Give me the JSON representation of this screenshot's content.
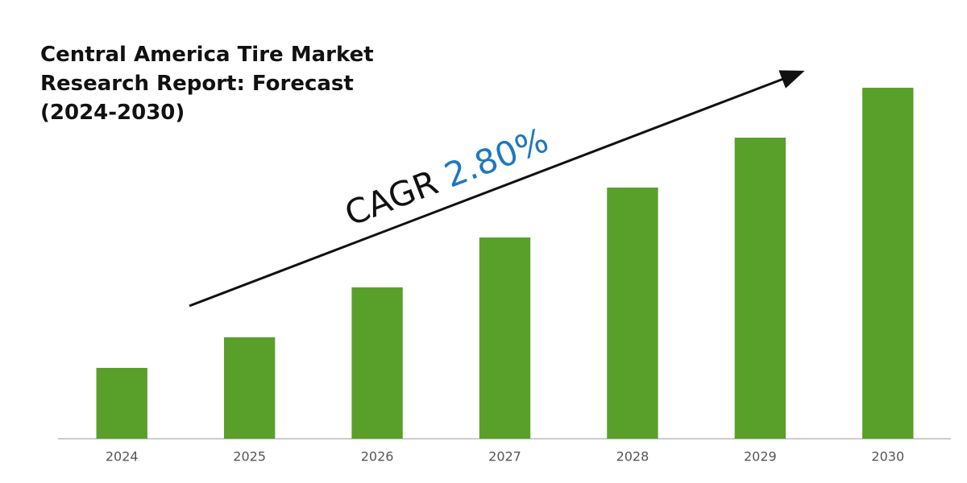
{
  "chart_data": {
    "type": "bar",
    "title": "Central America Tire Market Research Report: Forecast (2024-2030)",
    "annotation": {
      "label": "CAGR",
      "value": "2.80%"
    },
    "categories": [
      "2024",
      "2025",
      "2026",
      "2027",
      "2028",
      "2029",
      "2030"
    ],
    "values": [
      88,
      126,
      188,
      250,
      312,
      374,
      436
    ],
    "color": "#59a02b",
    "ylim": [
      0,
      460
    ]
  }
}
